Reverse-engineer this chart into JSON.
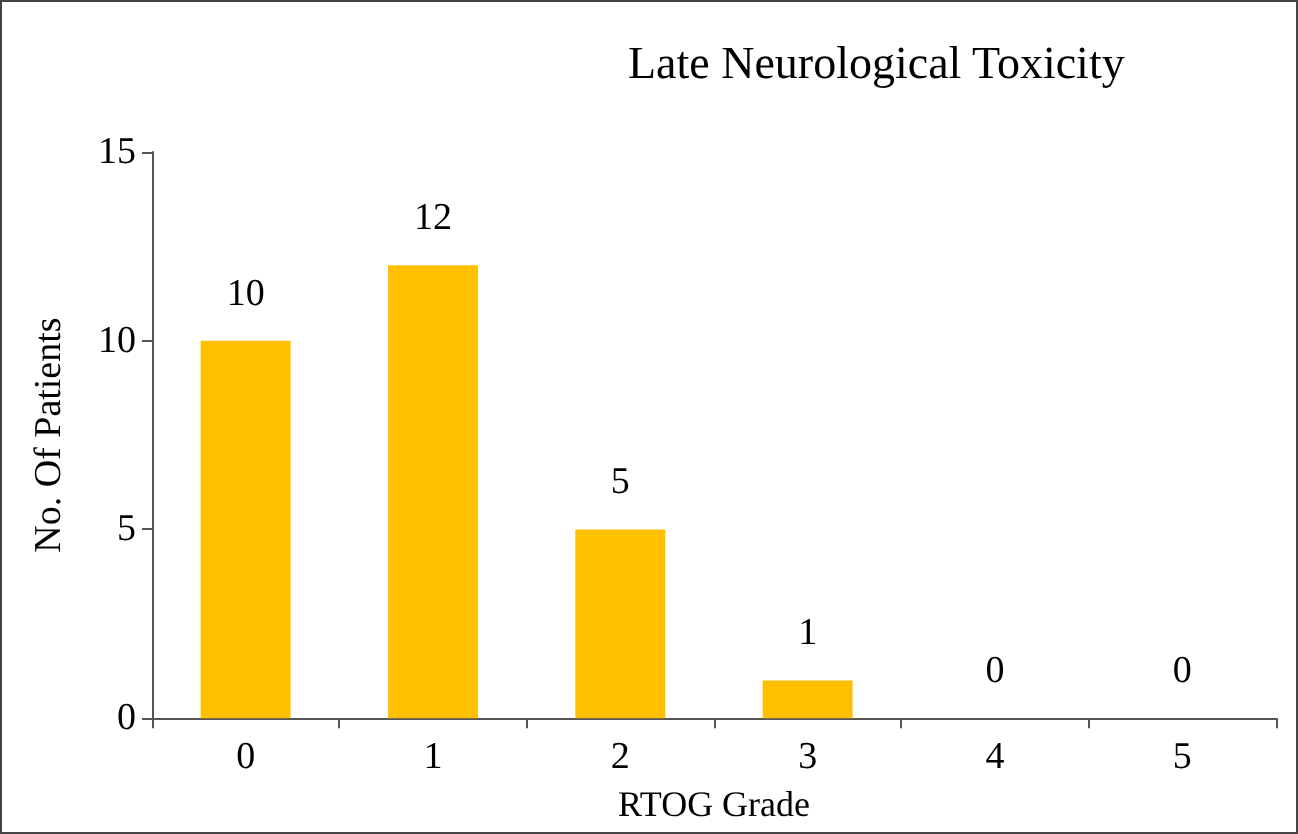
{
  "chart_data": {
    "type": "bar",
    "title": "Late Neurological Toxicity",
    "xlabel": "RTOG Grade",
    "ylabel": "No. Of Patients",
    "categories": [
      "0",
      "1",
      "2",
      "3",
      "4",
      "5"
    ],
    "values": [
      10,
      12,
      5,
      1,
      0,
      0
    ],
    "color": "#ffc000",
    "ylim": [
      0,
      15
    ],
    "yticks": [
      0,
      5,
      10,
      15
    ],
    "grid": false,
    "data_labels": true
  }
}
